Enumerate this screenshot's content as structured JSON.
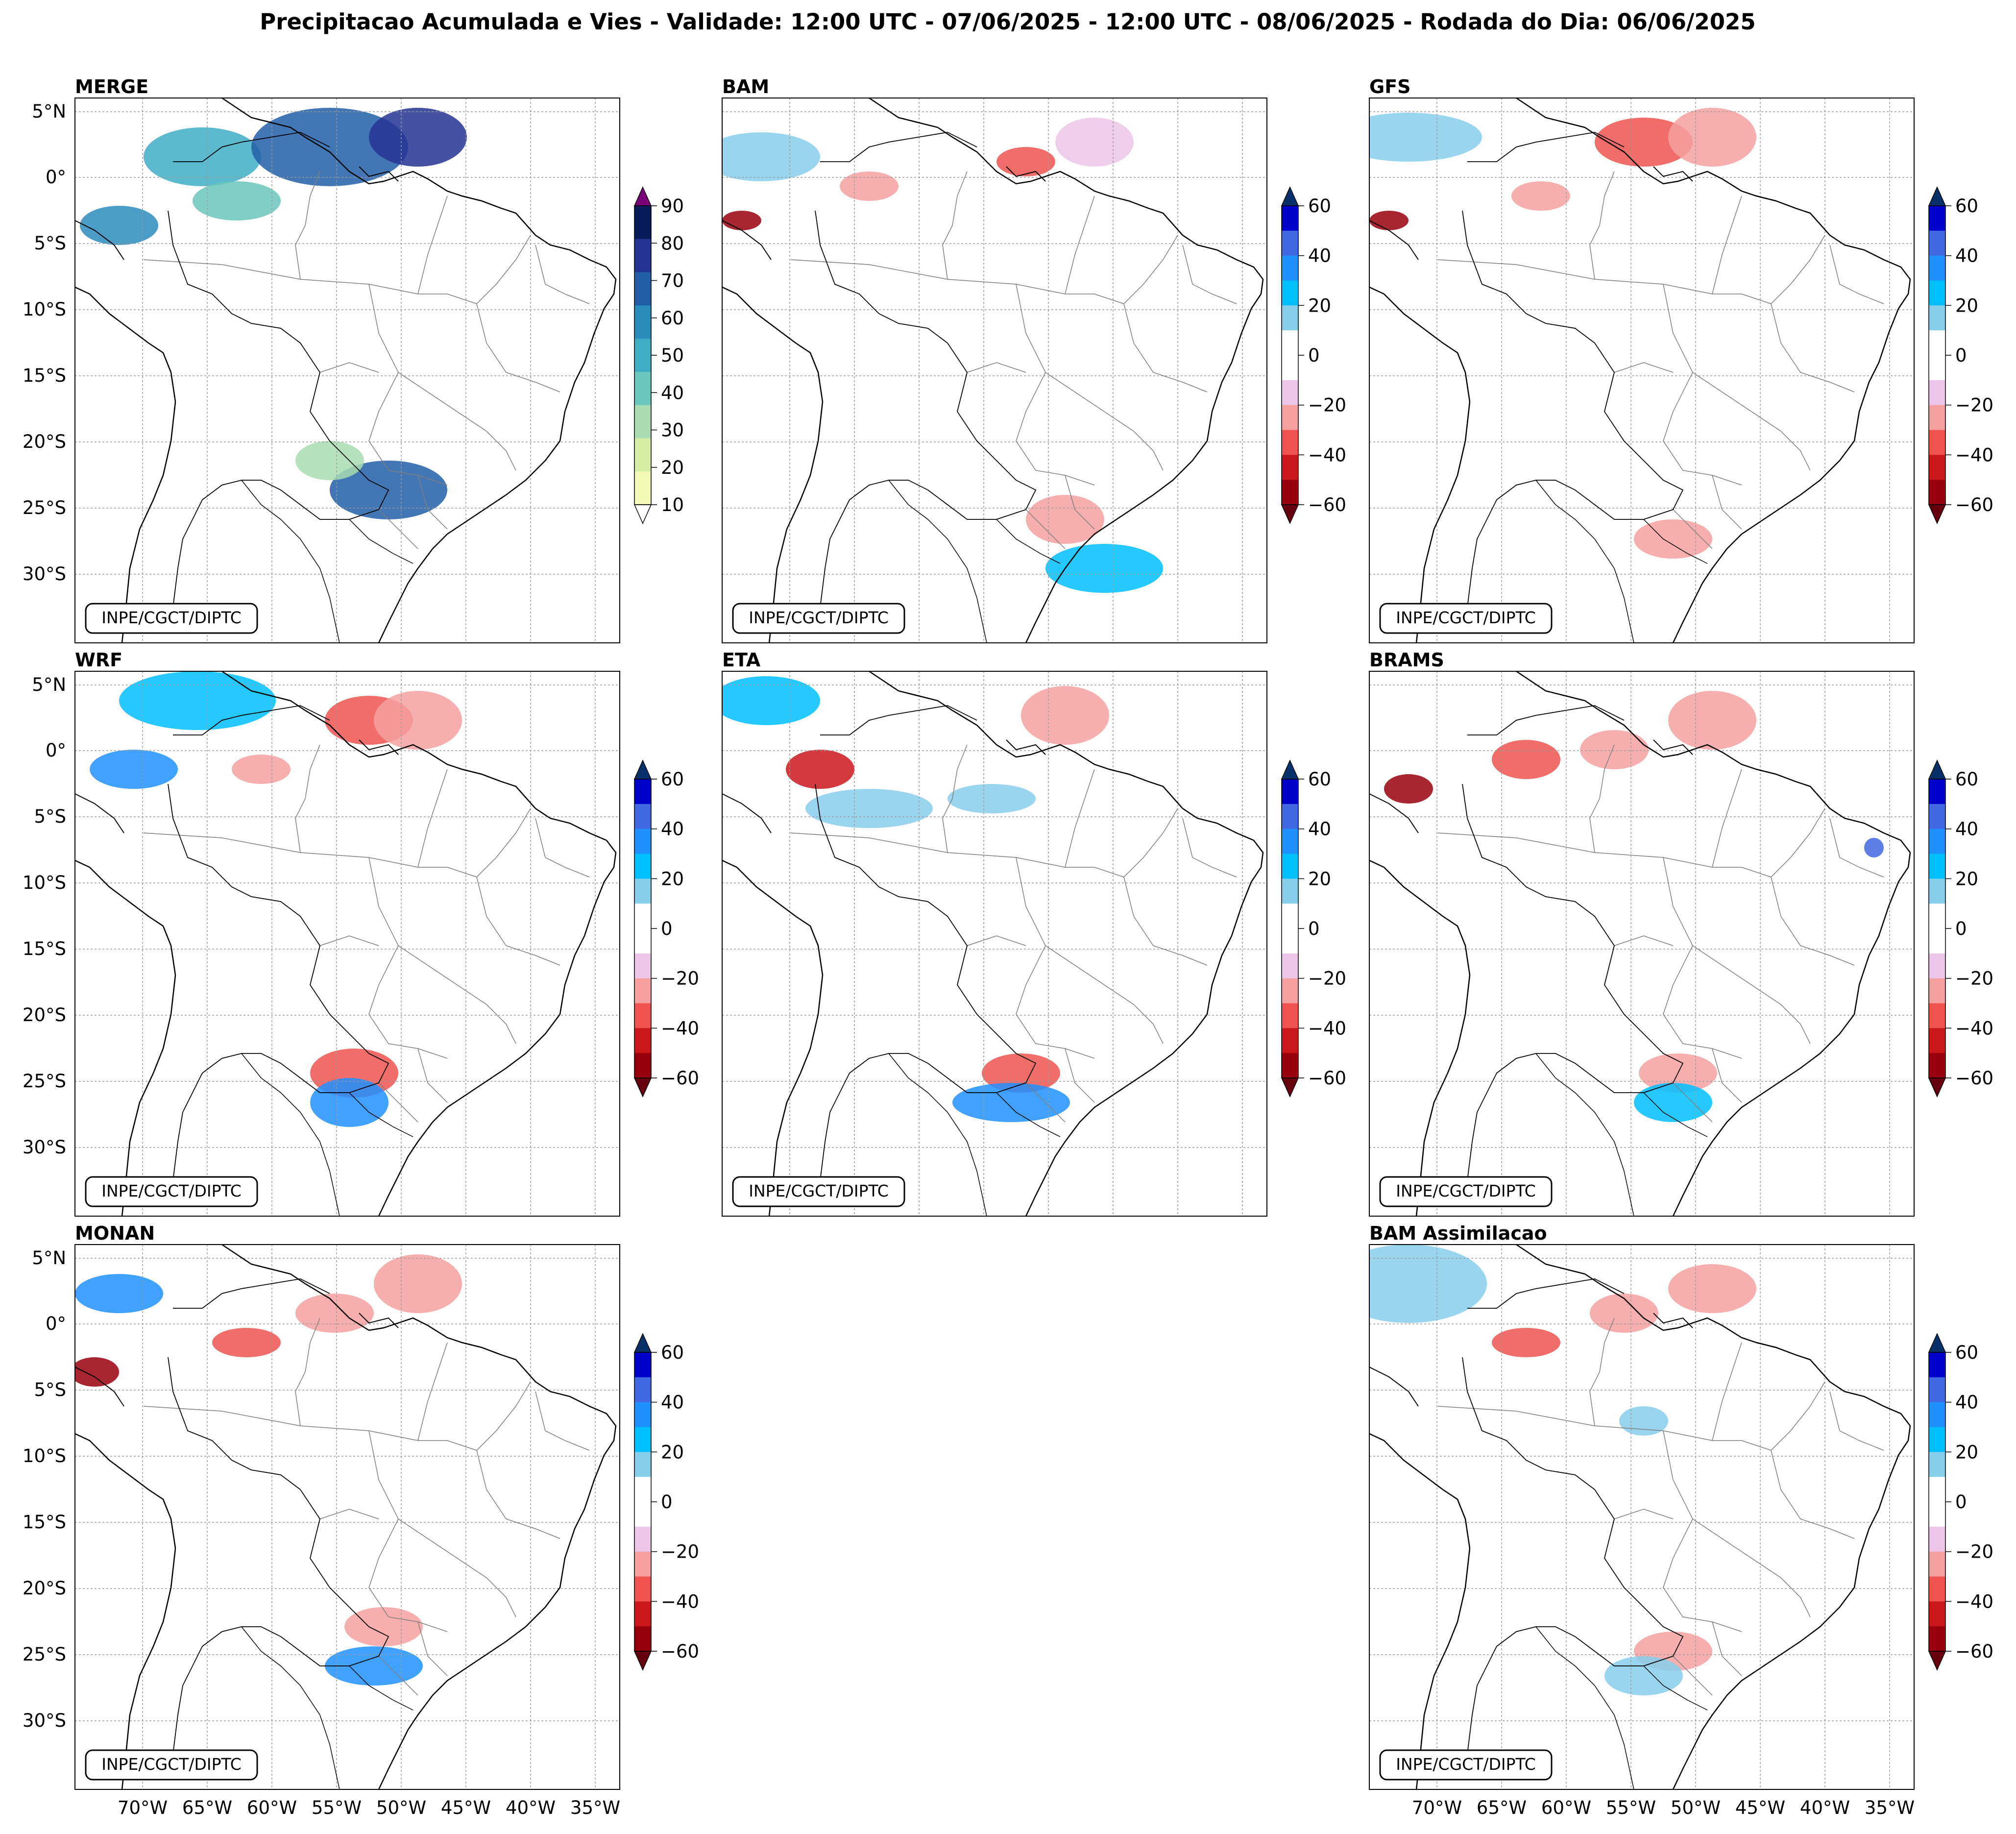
{
  "figure_title": "Precipitacao Acumulada e Vies - Validade: 12:00 UTC - 07/06/2025 - 12:00 UTC - 08/06/2025 - Rodada do Dia: 06/06/2025",
  "credit": "INPE/CGCT/DIPTC",
  "lat_labels": [
    "5°N",
    "0°",
    "5°S",
    "10°S",
    "15°S",
    "20°S",
    "25°S",
    "30°S"
  ],
  "lon_labels": [
    "70°W",
    "65°W",
    "60°W",
    "55°W",
    "50°W",
    "45°W",
    "40°W",
    "35°W"
  ],
  "colors": {
    "precip": [
      "#f3f8b8",
      "#d3eda5",
      "#a9dcb2",
      "#6ac6bb",
      "#3eaec4",
      "#2b8cbe",
      "#225ea8",
      "#253494",
      "#081d58"
    ],
    "precip_extend_low": "#ffffff",
    "precip_extend_high": "#7a0177",
    "bias": [
      "#99000d",
      "#cb181d",
      "#ef5350",
      "#f4a0a0",
      "#ecc5e8",
      "#ffffff",
      "#ffffff",
      "#87ceeb",
      "#00bfff",
      "#1e90ff",
      "#4169e1",
      "#0000cd"
    ],
    "bias_extend_low": "#67000d",
    "bias_extend_high": "#08306b",
    "land_border": "#000000",
    "state_border": "#7f7f7f"
  },
  "panels": [
    {
      "title": "MERGE",
      "kind": "precip",
      "colorbar_ticks": [
        "10",
        "20",
        "30",
        "40",
        "50",
        "60",
        "70",
        "80",
        "90"
      ]
    },
    {
      "title": "BAM",
      "kind": "bias",
      "colorbar_ticks": [
        "−60",
        "−40",
        "−20",
        "0",
        "20",
        "40",
        "60"
      ]
    },
    {
      "title": "GFS",
      "kind": "bias",
      "colorbar_ticks": [
        "−60",
        "−40",
        "−20",
        "0",
        "20",
        "40",
        "60"
      ]
    },
    {
      "title": "WRF",
      "kind": "bias",
      "colorbar_ticks": [
        "−60",
        "−40",
        "−20",
        "0",
        "20",
        "40",
        "60"
      ]
    },
    {
      "title": "ETA",
      "kind": "bias",
      "colorbar_ticks": [
        "−60",
        "−40",
        "−20",
        "0",
        "20",
        "40",
        "60"
      ]
    },
    {
      "title": "BRAMS",
      "kind": "bias",
      "colorbar_ticks": [
        "−60",
        "−40",
        "−20",
        "0",
        "20",
        "40",
        "60"
      ]
    },
    {
      "title": "MONAN",
      "kind": "bias",
      "colorbar_ticks": [
        "−60",
        "−40",
        "−20",
        "0",
        "20",
        "40",
        "60"
      ]
    },
    {
      "title": "BAM Assimilacao",
      "kind": "bias",
      "colorbar_ticks": [
        "−60",
        "−40",
        "−20",
        "0",
        "20",
        "40",
        "60"
      ]
    }
  ]
}
